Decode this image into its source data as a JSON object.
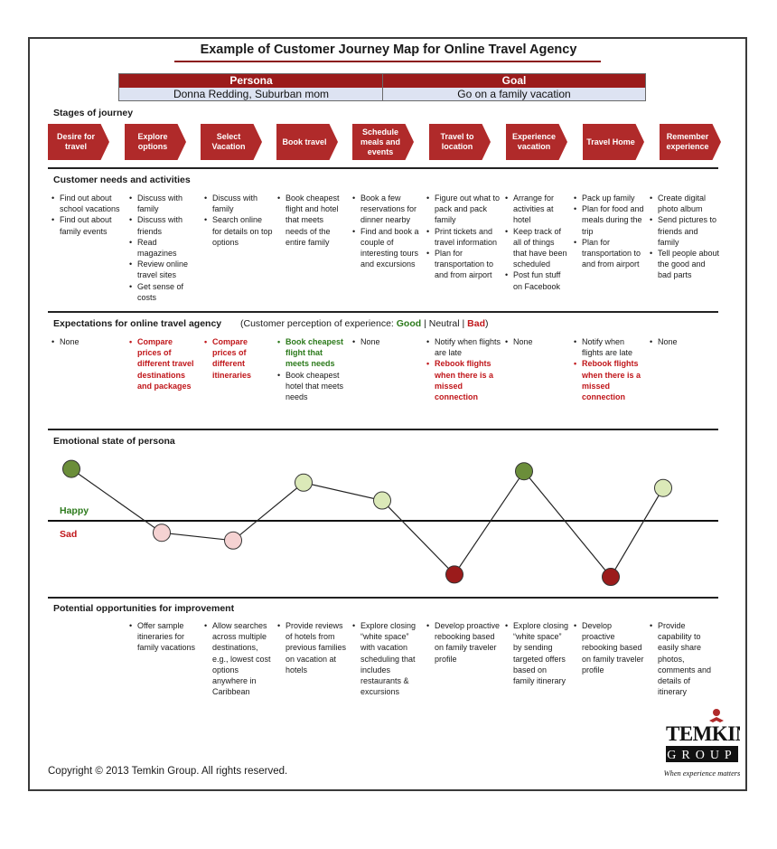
{
  "title": "Example of Customer Journey Map for Online Travel Agency",
  "persona": {
    "label": "Persona",
    "value": "Donna Redding, Suburban mom"
  },
  "goal": {
    "label": "Goal",
    "value": "Go on a family vacation"
  },
  "stages_title": "Stages of journey",
  "stages": [
    "Desire for travel",
    "Explore options",
    "Select Vacation",
    "Book travel",
    "Schedule meals and events",
    "Travel to location",
    "Experience vacation",
    "Travel Home",
    "Remember experience"
  ],
  "needs": {
    "title": "Customer needs and activities",
    "columns": [
      [
        "Find out about school vacations",
        "Find out about family events"
      ],
      [
        "Discuss with family",
        "Discuss with friends",
        "Read magazines",
        "Review online travel sites",
        "Get sense of costs"
      ],
      [
        "Discuss with family",
        "Search online for details on top options"
      ],
      [
        "Book cheapest flight and hotel that meets needs of the entire family"
      ],
      [
        "Book a few reservations for dinner nearby",
        "Find and book a couple of interesting tours and excursions"
      ],
      [
        "Figure out what to pack and pack family",
        "Print tickets and travel information",
        "Plan for transportation to and from airport"
      ],
      [
        "Arrange for activities at hotel",
        "Keep track of all of things that have been scheduled",
        "Post fun stuff on Facebook"
      ],
      [
        "Pack up family",
        "Plan for food and meals during the trip",
        "Plan for transportation to and from airport"
      ],
      [
        "Create digital photo album",
        "Send pictures to friends and family",
        "Tell people about the good and bad parts"
      ]
    ]
  },
  "expectations": {
    "title": "Expectations for online travel agency",
    "legend": {
      "prefix": "(Customer perception of experience: ",
      "good": "Good",
      "sep1": " | Neutral | ",
      "bad": "Bad",
      "suffix": ")"
    },
    "columns": [
      [
        {
          "text": "None",
          "tone": "neutral"
        }
      ],
      [
        {
          "text": "Compare prices of different travel destinations and packages",
          "tone": "bad"
        }
      ],
      [
        {
          "text": "Compare prices of different itineraries",
          "tone": "bad"
        }
      ],
      [
        {
          "text": "Book cheapest flight that meets needs",
          "tone": "good"
        },
        {
          "text": "Book cheapest hotel that meets needs",
          "tone": "neutral"
        }
      ],
      [
        {
          "text": "None",
          "tone": "neutral"
        }
      ],
      [
        {
          "text": "Notify when flights are late",
          "tone": "neutral"
        },
        {
          "text": "Rebook flights when there is a missed connection",
          "tone": "bad"
        }
      ],
      [
        {
          "text": "None",
          "tone": "neutral"
        }
      ],
      [
        {
          "text": "Notify when flights are late",
          "tone": "neutral"
        },
        {
          "text": "Rebook flights when there is a missed connection",
          "tone": "bad"
        }
      ],
      [
        {
          "text": "None",
          "tone": "neutral"
        }
      ]
    ]
  },
  "emotion": {
    "title": "Emotional state of persona",
    "happy_label": "Happy",
    "sad_label": "Sad",
    "levels": [
      0.87,
      -0.2,
      -0.33,
      0.64,
      0.34,
      -0.9,
      0.83,
      -0.94,
      0.55
    ],
    "colors": {
      "very_good": "#6b8e3a",
      "good": "#dbe9b8",
      "bad_light": "#f5d2d2",
      "very_bad": "#9b1b1b"
    }
  },
  "opportunities": {
    "title": "Potential opportunities for improvement",
    "columns": [
      [],
      [
        "Offer sample itineraries for family vacations"
      ],
      [
        "Allow searches across multiple destinations, e.g., lowest cost options anywhere in Caribbean"
      ],
      [
        "Provide reviews of hotels from previous families on vacation at hotels"
      ],
      [
        "Explore closing “white space” with vacation scheduling that includes restaurants & excursions"
      ],
      [
        "Develop proactive rebooking based on family traveler profile"
      ],
      [
        "Explore closing “white space” by sending targeted offers based on family itinerary"
      ],
      [
        "Develop proactive rebooking based on family traveler profile"
      ],
      [
        "Provide capability to easily share photos, comments and details of itinerary"
      ]
    ]
  },
  "copyright": "Copyright © 2013 Temkin Group. All rights reserved.",
  "logo": {
    "word": "TEMKIN",
    "sub": "GROUP",
    "tagline": "When experience matters"
  },
  "theme": {
    "accent": "#9b1b1b",
    "chevron": "#b02a2a",
    "persona_fill": "#dde3f2",
    "good": "#2c7a1b",
    "bad": "#c0161a"
  }
}
